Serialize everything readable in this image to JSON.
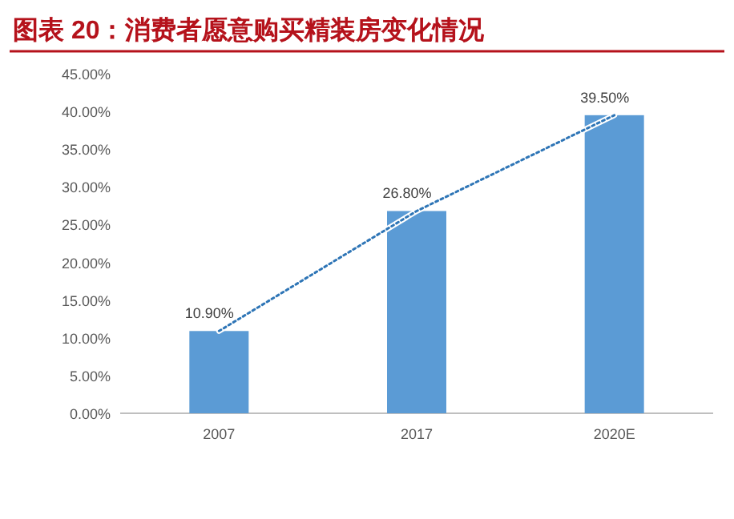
{
  "chart_data": {
    "type": "bar",
    "title": "图表 20：消费者愿意购买精装房变化情况",
    "categories": [
      "2007",
      "2017",
      "2020E"
    ],
    "series": [
      {
        "color": "#5b9bd5",
        "values": [
          10.9,
          26.8,
          39.5
        ],
        "value_labels": [
          "10.90%",
          "26.80%",
          "39.50%"
        ]
      },
      {
        "type": "line",
        "color": "#2e75b6",
        "line_style": "dotted",
        "marker": "none",
        "values": [
          10.9,
          26.8,
          39.5
        ]
      }
    ],
    "ylim": [
      0,
      45
    ],
    "yticks": [
      {
        "value": 0,
        "label": "0.00%"
      },
      {
        "value": 5,
        "label": "5.00%"
      },
      {
        "value": 10,
        "label": "10.00%"
      },
      {
        "value": 15,
        "label": "15.00%"
      },
      {
        "value": 20,
        "label": "20.00%"
      },
      {
        "value": 25,
        "label": "25.00%"
      },
      {
        "value": 30,
        "label": "30.00%"
      },
      {
        "value": 35,
        "label": "35.00%"
      },
      {
        "value": 40,
        "label": "40.00%"
      },
      {
        "value": 45,
        "label": "45.00%"
      }
    ]
  }
}
